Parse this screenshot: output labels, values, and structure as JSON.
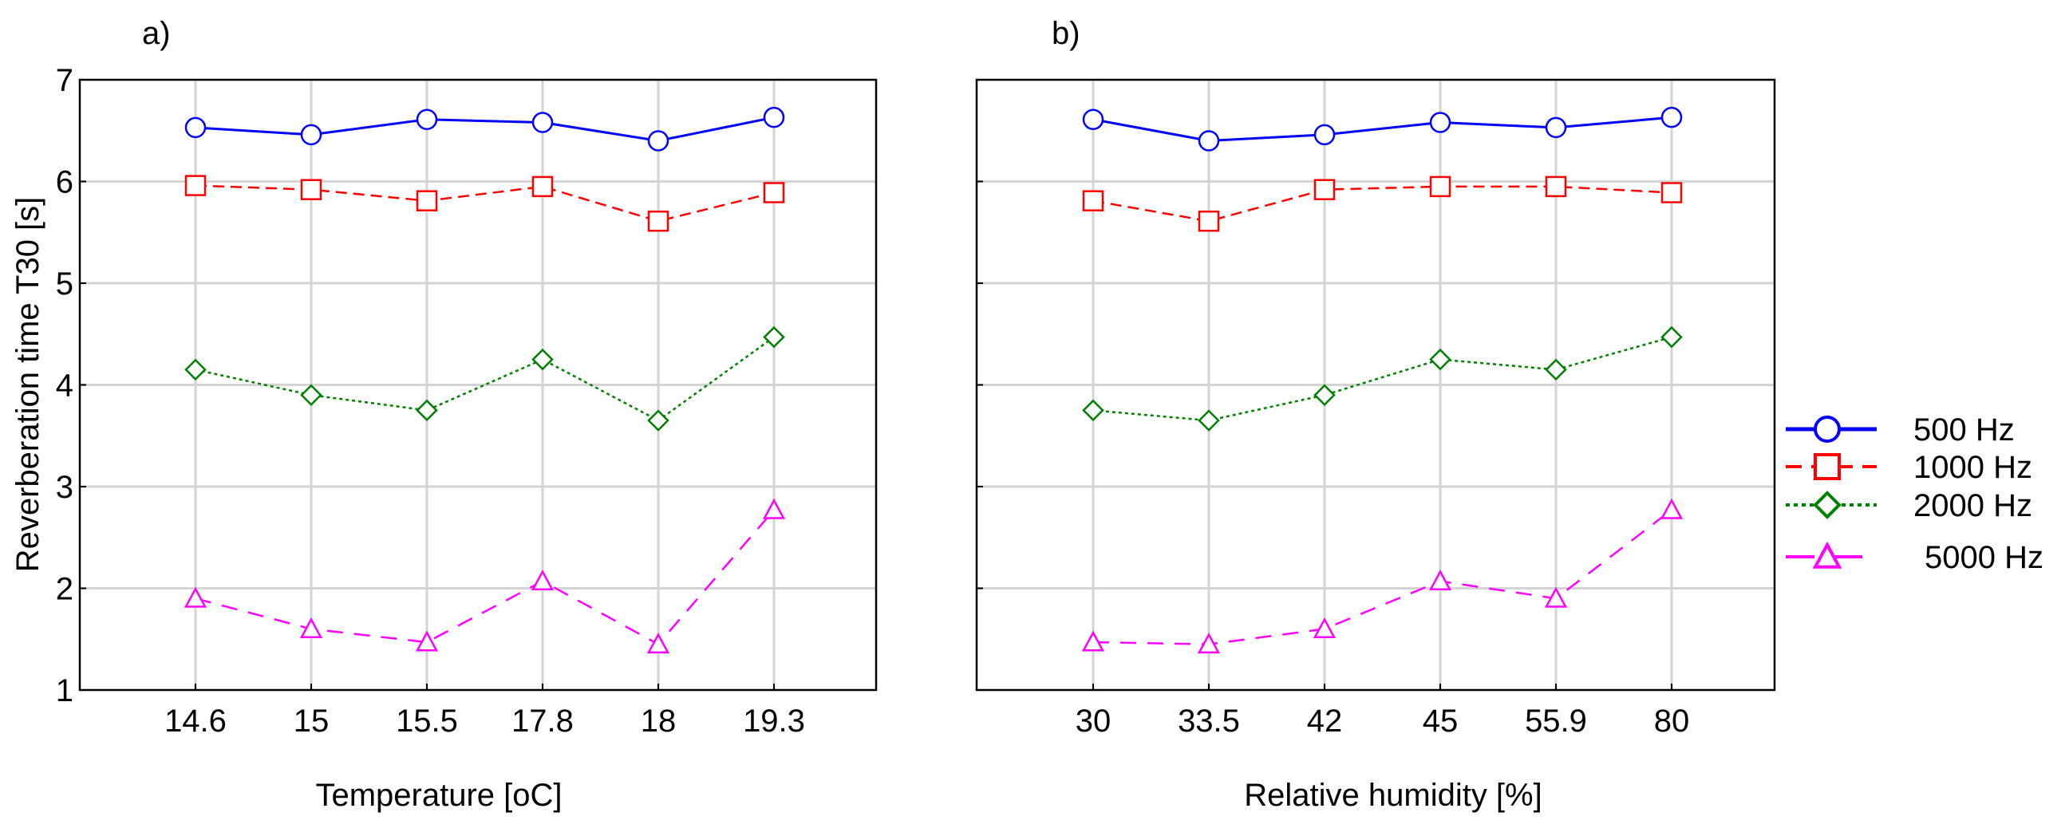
{
  "y_axis_label": "Reverberation time T30   [s]",
  "legend": [
    {
      "name": "500 Hz",
      "color": "#0000FF",
      "marker": "circle",
      "dash": "solid"
    },
    {
      "name": "1000 Hz",
      "color": "#FF0000",
      "marker": "square",
      "dash": "dash"
    },
    {
      "name": "2000 Hz",
      "color": "#008000",
      "marker": "diamond",
      "dash": "dot"
    },
    {
      "name": "5000 Hz",
      "color": "#FF00FF",
      "marker": "triangle",
      "dash": "longdash"
    }
  ],
  "chart_data": [
    {
      "type": "line",
      "panel_label": "a)",
      "xlabel": "Temperature   [oC]",
      "ylabel": "Reverberation time T30   [s]",
      "categories": [
        "14.6",
        "15",
        "15.5",
        "17.8",
        "18",
        "19.3"
      ],
      "ylim": [
        1,
        7
      ],
      "yticks": [
        "1",
        "2",
        "3",
        "4",
        "5",
        "6",
        "7"
      ],
      "grid": true,
      "series": [
        {
          "name": "500 Hz",
          "values": [
            6.53,
            6.46,
            6.61,
            6.58,
            6.4,
            6.63
          ]
        },
        {
          "name": "1000 Hz",
          "values": [
            5.96,
            5.92,
            5.81,
            5.95,
            5.61,
            5.89
          ]
        },
        {
          "name": "2000 Hz",
          "values": [
            4.15,
            3.9,
            3.75,
            4.25,
            3.65,
            4.47
          ]
        },
        {
          "name": "5000 Hz",
          "values": [
            1.9,
            1.6,
            1.47,
            2.07,
            1.45,
            2.77
          ]
        }
      ]
    },
    {
      "type": "line",
      "panel_label": "b)",
      "xlabel": "Relative humidity   [%]",
      "ylabel": "",
      "categories": [
        "30",
        "33.5",
        "42",
        "45",
        "55.9",
        "80"
      ],
      "ylim": [
        1,
        7
      ],
      "yticks": [
        "1",
        "2",
        "3",
        "4",
        "5",
        "6",
        "7"
      ],
      "grid": true,
      "series": [
        {
          "name": "500 Hz",
          "values": [
            6.61,
            6.4,
            6.46,
            6.58,
            6.53,
            6.63
          ]
        },
        {
          "name": "1000 Hz",
          "values": [
            5.81,
            5.61,
            5.92,
            5.95,
            5.95,
            5.89
          ]
        },
        {
          "name": "2000 Hz",
          "values": [
            3.75,
            3.65,
            3.9,
            4.25,
            4.15,
            4.47
          ]
        },
        {
          "name": "5000 Hz",
          "values": [
            1.47,
            1.45,
            1.6,
            2.07,
            1.9,
            2.77
          ]
        }
      ]
    }
  ]
}
